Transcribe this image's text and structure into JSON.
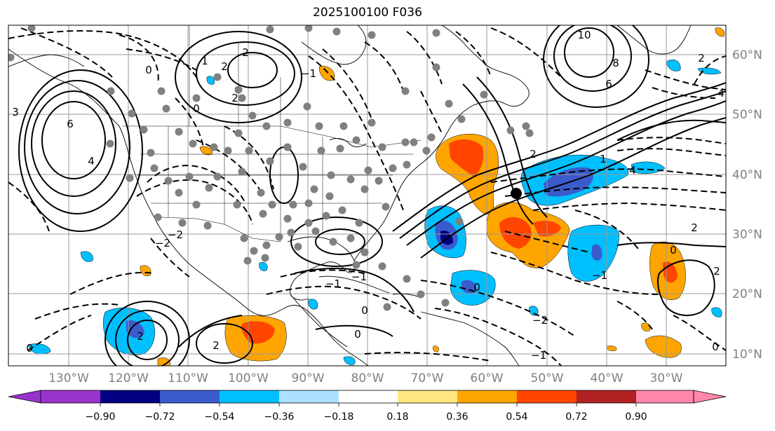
{
  "title": "2025100100 F036",
  "longitude_labels": [
    "130°W",
    "120°W",
    "110°W",
    "100°W",
    "90°W",
    "80°W",
    "70°W",
    "60°W",
    "50°W",
    "40°W",
    "30°W"
  ],
  "latitude_labels": [
    "60°N",
    "50°N",
    "40°N",
    "30°N",
    "20°N",
    "10°N"
  ],
  "colorbar": {
    "colors": [
      "#9932CC",
      "#000080",
      "#3A5BCB",
      "#00BFFF",
      "#ADE0FF",
      "#FFFFFF",
      "#FFE680",
      "#FFA500",
      "#FF4500",
      "#B22222",
      "#FF88AA"
    ],
    "tick_labels": [
      "−0.90",
      "−0.72",
      "−0.54",
      "−0.36",
      "−0.18",
      "0.18",
      "0.36",
      "0.54",
      "0.72",
      "0.90"
    ]
  },
  "contour_labels": [
    "4",
    "6",
    "0",
    "2",
    "2",
    "1",
    "0",
    "2",
    "6",
    "8",
    "10",
    "0",
    "2",
    "4",
    "−2",
    "−1",
    "0",
    "−1",
    "0",
    "2",
    "2",
    "−2",
    "−1",
    "4",
    "2",
    "−1",
    "0",
    "2",
    "−2",
    "−1",
    "1",
    "0",
    "2",
    "3",
    "0"
  ],
  "colors": {
    "grid": "#999999",
    "coast": "#000000",
    "gray_dots": "#808080"
  }
}
